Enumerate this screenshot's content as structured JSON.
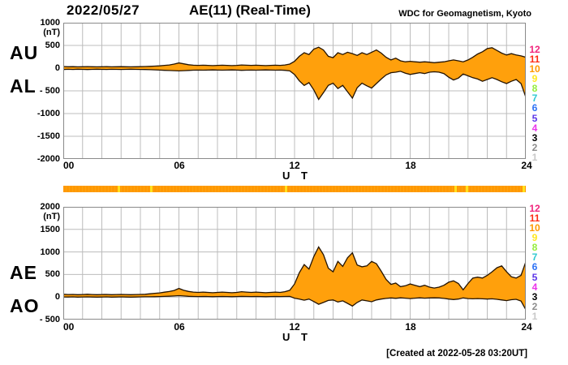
{
  "header": {
    "date": "2022/05/27",
    "title": "AE(11) (Real-Time)",
    "credit": "WDC for Geomagnetism, Kyoto"
  },
  "footer": {
    "created": "[Created at 2022-05-28 03:20UT]"
  },
  "x_axis": {
    "ticks": [
      "00",
      "06",
      "12",
      "18",
      "24"
    ],
    "label": "U T"
  },
  "panel1": {
    "left_labels": {
      "upper": "AU",
      "lower": "AL"
    },
    "unit": "(nT)",
    "y_ticks": [
      "1000",
      "500",
      "0",
      "- 500",
      "-1000",
      "-1500",
      "-2000"
    ]
  },
  "panel2": {
    "left_labels": {
      "upper": "AE",
      "lower": "AO"
    },
    "unit": "(nT)",
    "y_ticks": [
      "2000",
      "1500",
      "1000",
      "500",
      "0",
      "- 500"
    ]
  },
  "legend": {
    "meaning": "number of available stations",
    "values": [
      "12",
      "11",
      "10",
      "9",
      "8",
      "7",
      "6",
      "5",
      "4",
      "3",
      "2",
      "1"
    ],
    "colors": [
      "#f1257c",
      "#ff2d16",
      "#ff9900",
      "#ffe81e",
      "#95ed3c",
      "#2fc8d2",
      "#2d72f5",
      "#5b35e8",
      "#eb33eb",
      "#000000",
      "#8d8d8d",
      "#c9c9c9"
    ]
  },
  "station_bar": {
    "color": "#ff9800",
    "gap_color": "#ffe11e",
    "gap_marks_hours": [
      2.8,
      4.5,
      11.5,
      20.3,
      20.9,
      23.85
    ]
  },
  "style": {
    "fill_color": "#ffa00c",
    "outline_color": "#241300",
    "grid_color": "#bcbcbc",
    "border_color": "#8a8a8a"
  },
  "chart_data": [
    {
      "type": "area",
      "panel": "AU/AL",
      "title": "AE(11) (Real-Time) 2022/05/27",
      "xlabel": "U T",
      "ylabel": "(nT)",
      "xlim": [
        0,
        24
      ],
      "x_tick_labels": [
        "00",
        "06",
        "12",
        "18",
        "24"
      ],
      "x_step_hours": 0.25,
      "ylim": [
        -2000,
        1000
      ],
      "y_step": 500,
      "grid": true,
      "series": [
        {
          "name": "AU",
          "values": [
            35,
            30,
            32,
            28,
            30,
            34,
            30,
            28,
            30,
            32,
            28,
            30,
            32,
            30,
            28,
            30,
            32,
            35,
            40,
            45,
            50,
            60,
            70,
            90,
            115,
            95,
            75,
            65,
            60,
            65,
            60,
            55,
            60,
            65,
            60,
            55,
            60,
            70,
            65,
            60,
            65,
            60,
            55,
            60,
            65,
            60,
            70,
            90,
            150,
            260,
            340,
            300,
            420,
            460,
            400,
            260,
            230,
            340,
            300,
            350,
            320,
            280,
            340,
            300,
            350,
            400,
            330,
            240,
            180,
            220,
            160,
            140,
            150,
            140,
            130,
            140,
            130,
            120,
            130,
            140,
            160,
            180,
            160,
            140,
            180,
            240,
            310,
            360,
            430,
            450,
            390,
            330,
            290,
            320,
            290,
            270,
            240
          ]
        },
        {
          "name": "AL",
          "values": [
            -30,
            -25,
            -28,
            -24,
            -26,
            -30,
            -26,
            -24,
            -26,
            -28,
            -25,
            -27,
            -28,
            -26,
            -24,
            -26,
            -28,
            -30,
            -34,
            -38,
            -42,
            -48,
            -52,
            -56,
            -60,
            -55,
            -50,
            -45,
            -42,
            -45,
            -42,
            -40,
            -42,
            -45,
            -42,
            -40,
            -42,
            -48,
            -45,
            -42,
            -45,
            -42,
            -40,
            -42,
            -45,
            -42,
            -48,
            -60,
            -140,
            -280,
            -380,
            -320,
            -480,
            -690,
            -540,
            -380,
            -330,
            -450,
            -380,
            -520,
            -660,
            -430,
            -330,
            -390,
            -440,
            -340,
            -240,
            -150,
            -100,
            -90,
            -70,
            -110,
            -140,
            -120,
            -100,
            -120,
            -90,
            -80,
            -90,
            -120,
            -200,
            -260,
            -220,
            -130,
            -170,
            -210,
            -240,
            -290,
            -250,
            -210,
            -250,
            -300,
            -340,
            -290,
            -250,
            -340,
            -640
          ]
        }
      ]
    },
    {
      "type": "area",
      "panel": "AE/AO",
      "title": "AE(11) (Real-Time) 2022/05/27",
      "xlabel": "U T",
      "ylabel": "(nT)",
      "xlim": [
        0,
        24
      ],
      "x_tick_labels": [
        "00",
        "06",
        "12",
        "18",
        "24"
      ],
      "x_step_hours": 0.25,
      "ylim": [
        -500,
        2000
      ],
      "y_step": 500,
      "grid": true,
      "series": [
        {
          "name": "AE",
          "values": [
            62,
            55,
            58,
            52,
            55,
            62,
            55,
            52,
            55,
            58,
            52,
            55,
            58,
            55,
            52,
            55,
            58,
            62,
            72,
            82,
            92,
            108,
            122,
            146,
            190,
            150,
            125,
            110,
            102,
            110,
            102,
            95,
            102,
            110,
            102,
            95,
            102,
            118,
            110,
            102,
            110,
            102,
            95,
            102,
            110,
            102,
            118,
            150,
            290,
            540,
            720,
            620,
            900,
            1110,
            940,
            640,
            560,
            790,
            680,
            870,
            980,
            710,
            670,
            690,
            790,
            740,
            570,
            390,
            280,
            310,
            230,
            250,
            290,
            260,
            230,
            260,
            220,
            200,
            220,
            260,
            330,
            360,
            300,
            160,
            300,
            420,
            440,
            420,
            480,
            560,
            650,
            690,
            560,
            450,
            420,
            480,
            780
          ]
        },
        {
          "name": "AO",
          "values": [
            2,
            0,
            3,
            -2,
            2,
            4,
            0,
            -2,
            0,
            3,
            -2,
            0,
            3,
            0,
            -2,
            0,
            3,
            5,
            6,
            8,
            10,
            14,
            18,
            24,
            30,
            24,
            16,
            12,
            10,
            12,
            10,
            8,
            10,
            12,
            10,
            8,
            10,
            14,
            12,
            10,
            12,
            10,
            8,
            10,
            12,
            10,
            12,
            15,
            -25,
            -45,
            -70,
            -45,
            -100,
            -160,
            -120,
            -75,
            -65,
            -110,
            -85,
            -140,
            -200,
            -120,
            -65,
            -85,
            -105,
            -65,
            -45,
            -30,
            -20,
            -28,
            -18,
            -25,
            -35,
            -25,
            -18,
            -25,
            -20,
            -18,
            -20,
            -30,
            -45,
            -55,
            -45,
            -20,
            -35,
            -40,
            -35,
            -40,
            -45,
            -40,
            -50,
            -65,
            -80,
            -60,
            -50,
            -90,
            -280
          ]
        }
      ]
    }
  ]
}
